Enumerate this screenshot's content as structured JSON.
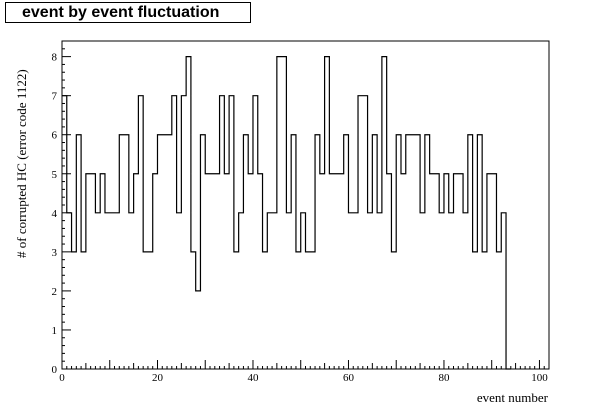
{
  "chart_data": {
    "type": "histogram",
    "title": "event by event fluctuation",
    "xlabel": "event number",
    "ylabel": "# of corrupted HC (error code 1122)",
    "xlim": [
      0,
      102
    ],
    "ylim": [
      0,
      8.4
    ],
    "x_major_ticks": [
      0,
      20,
      40,
      60,
      80,
      100
    ],
    "y_major_ticks": [
      0,
      1,
      2,
      3,
      4,
      5,
      6,
      7,
      8
    ],
    "bin_width": 1,
    "values": [
      7,
      4,
      3,
      6,
      3,
      5,
      5,
      4,
      5,
      4,
      4,
      4,
      6,
      6,
      4,
      5,
      7,
      3,
      3,
      5,
      6,
      6,
      6,
      7,
      4,
      7,
      8,
      3,
      2,
      6,
      5,
      5,
      5,
      7,
      5,
      7,
      3,
      4,
      6,
      5,
      7,
      5,
      3,
      4,
      4,
      8,
      8,
      4,
      6,
      3,
      4,
      3,
      3,
      6,
      5,
      8,
      5,
      5,
      5,
      6,
      4,
      4,
      7,
      7,
      4,
      6,
      4,
      8,
      5,
      3,
      6,
      5,
      6,
      6,
      6,
      4,
      6,
      5,
      5,
      4,
      5,
      4,
      5,
      5,
      4,
      6,
      3,
      6,
      3,
      5,
      5,
      3,
      4,
      0
    ]
  }
}
